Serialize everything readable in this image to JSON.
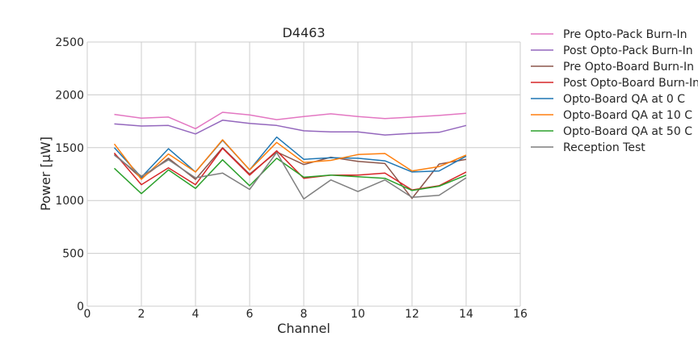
{
  "chart_data": {
    "type": "line",
    "title": "D4463",
    "xlabel": "Channel",
    "ylabel": "Power [μW]",
    "xlim": [
      0,
      16
    ],
    "ylim": [
      0,
      2500
    ],
    "xticks": [
      0,
      2,
      4,
      6,
      8,
      10,
      12,
      14,
      16
    ],
    "yticks": [
      0,
      500,
      1000,
      1500,
      2000,
      2500
    ],
    "grid": true,
    "legend_position": "outside-right",
    "x": [
      1,
      2,
      3,
      4,
      5,
      6,
      7,
      8,
      9,
      10,
      11,
      12,
      13,
      14
    ],
    "series": [
      {
        "name": "Pre Opto-Pack Burn-In",
        "color": "#e377c2",
        "values": [
          1815,
          1780,
          1790,
          1680,
          1835,
          1810,
          1765,
          1795,
          1820,
          1795,
          1775,
          1790,
          1805,
          1825
        ]
      },
      {
        "name": "Post Opto-Pack Burn-In",
        "color": "#9467bd",
        "values": [
          1725,
          1705,
          1710,
          1630,
          1760,
          1730,
          1710,
          1660,
          1650,
          1650,
          1620,
          1635,
          1645,
          1710
        ]
      },
      {
        "name": "Pre Opto-Board Burn-In",
        "color": "#8c564b",
        "values": [
          1440,
          1210,
          1400,
          1200,
          1500,
          1250,
          1460,
          1340,
          1410,
          1370,
          1350,
          1020,
          1345,
          1390
        ]
      },
      {
        "name": "Post Opto-Board Burn-In",
        "color": "#d62728",
        "values": [
          1450,
          1150,
          1310,
          1150,
          1495,
          1240,
          1470,
          1210,
          1240,
          1240,
          1260,
          1100,
          1140,
          1270
        ]
      },
      {
        "name": "Opto-Board QA at 0 C",
        "color": "#1f77b4",
        "values": [
          1500,
          1220,
          1490,
          1270,
          1570,
          1290,
          1600,
          1390,
          1405,
          1400,
          1375,
          1270,
          1280,
          1420
        ]
      },
      {
        "name": "Opto-Board QA at 10 C",
        "color": "#ff7f0e",
        "values": [
          1535,
          1200,
          1440,
          1270,
          1575,
          1290,
          1550,
          1360,
          1380,
          1435,
          1445,
          1280,
          1320,
          1430
        ]
      },
      {
        "name": "Opto-Board QA at 50 C",
        "color": "#2ca02c",
        "values": [
          1305,
          1065,
          1290,
          1115,
          1385,
          1140,
          1400,
          1220,
          1240,
          1225,
          1210,
          1095,
          1135,
          1240
        ]
      },
      {
        "name": "Reception Test",
        "color": "#7f7f7f",
        "values": [
          1430,
          1230,
          1385,
          1215,
          1260,
          1105,
          1455,
          1015,
          1195,
          1085,
          1195,
          1030,
          1050,
          1215
        ]
      }
    ]
  }
}
